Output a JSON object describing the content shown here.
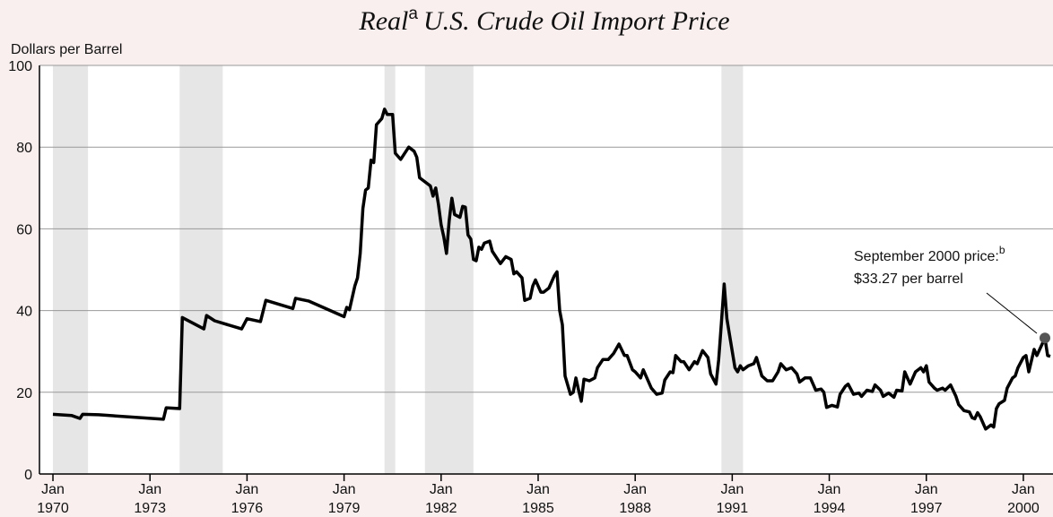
{
  "chart_data": {
    "type": "line",
    "title": [
      "Real",
      "a",
      "U.S. Crude Oil Import Price"
    ],
    "y_label": "Dollars per Barrel",
    "color": "#000000",
    "shade_color": "#e6e6e6",
    "grid": true,
    "xlim": [
      "1969-08",
      "2000-12"
    ],
    "ylim": [
      0,
      100
    ],
    "yticks": [
      0,
      20,
      40,
      60,
      80,
      100
    ],
    "xticks": [
      {
        "value": "1970-01",
        "label": [
          "Jan",
          "1970"
        ]
      },
      {
        "value": "1973-01",
        "label": [
          "Jan",
          "1973"
        ]
      },
      {
        "value": "1976-01",
        "label": [
          "Jan",
          "1976"
        ]
      },
      {
        "value": "1979-01",
        "label": [
          "Jan",
          "1979"
        ]
      },
      {
        "value": "1982-01",
        "label": [
          "Jan",
          "1982"
        ]
      },
      {
        "value": "1985-01",
        "label": [
          "Jan",
          "1985"
        ]
      },
      {
        "value": "1988-01",
        "label": [
          "Jan",
          "1988"
        ]
      },
      {
        "value": "1991-01",
        "label": [
          "Jan",
          "1991"
        ]
      },
      {
        "value": "1994-01",
        "label": [
          "Jan",
          "1994"
        ]
      },
      {
        "value": "1997-01",
        "label": [
          "Jan",
          "1997"
        ]
      },
      {
        "value": "2000-01",
        "label": [
          "Jan",
          "2000"
        ]
      }
    ],
    "shaded_periods": [
      [
        "1970-01",
        "1971-02"
      ],
      [
        "1973-12",
        "1975-04"
      ],
      [
        "1980-04",
        "1980-08"
      ],
      [
        "1981-07",
        "1983-01"
      ],
      [
        "1990-09",
        "1991-05"
      ]
    ],
    "x": [
      "1970-01",
      "1970-08",
      "1970-11",
      "1970-12",
      "1971-06",
      "1973-06",
      "1973-07",
      "1973-12",
      "1974-01",
      "1974-09",
      "1974-10",
      "1975-01",
      "1975-11",
      "1976-01",
      "1976-06",
      "1976-08",
      "1977-06",
      "1977-07",
      "1977-12",
      "1979-01",
      "1979-02",
      "1979-03",
      "1979-05",
      "1979-06",
      "1979-07",
      "1979-08",
      "1979-09",
      "1979-10",
      "1979-11",
      "1979-12",
      "1980-01",
      "1980-03",
      "1980-04",
      "1980-05",
      "1980-07",
      "1980-08",
      "1980-10",
      "1981-01",
      "1981-03",
      "1981-04",
      "1981-05",
      "1981-09",
      "1981-10",
      "1981-11",
      "1981-12",
      "1982-01",
      "1982-02",
      "1982-03",
      "1982-04",
      "1982-05",
      "1982-06",
      "1982-08",
      "1982-09",
      "1982-10",
      "1982-11",
      "1982-12",
      "1983-01",
      "1983-02",
      "1983-03",
      "1983-04",
      "1983-05",
      "1983-07",
      "1983-08",
      "1983-11",
      "1984-01",
      "1984-03",
      "1984-04",
      "1984-05",
      "1984-07",
      "1984-08",
      "1984-10",
      "1984-11",
      "1984-12",
      "1985-02",
      "1985-03",
      "1985-05",
      "1985-07",
      "1985-08",
      "1985-09",
      "1985-10",
      "1985-11",
      "1986-01",
      "1986-02",
      "1986-03",
      "1986-04",
      "1986-05",
      "1986-06",
      "1986-08",
      "1986-10",
      "1986-11",
      "1987-01",
      "1987-03",
      "1987-05",
      "1987-07",
      "1987-09",
      "1987-10",
      "1987-12",
      "1988-01",
      "1988-03",
      "1988-04",
      "1988-05",
      "1988-07",
      "1988-09",
      "1988-11",
      "1988-12",
      "1989-02",
      "1989-03",
      "1989-04",
      "1989-06",
      "1989-07",
      "1989-09",
      "1989-11",
      "1989-12",
      "1990-02",
      "1990-04",
      "1990-05",
      "1990-07",
      "1990-08",
      "1990-09",
      "1990-10",
      "1990-11",
      "1990-12",
      "1991-02",
      "1991-03",
      "1991-04",
      "1991-05",
      "1991-07",
      "1991-09",
      "1991-10",
      "1991-12",
      "1992-02",
      "1992-04",
      "1992-06",
      "1992-07",
      "1992-09",
      "1992-11",
      "1993-01",
      "1993-02",
      "1993-04",
      "1993-06",
      "1993-08",
      "1993-10",
      "1993-11",
      "1993-12",
      "1994-02",
      "1994-04",
      "1994-05",
      "1994-07",
      "1994-08",
      "1994-10",
      "1994-12",
      "1995-01",
      "1995-03",
      "1995-05",
      "1995-06",
      "1995-08",
      "1995-09",
      "1995-11",
      "1996-01",
      "1996-02",
      "1996-04",
      "1996-05",
      "1996-07",
      "1996-08",
      "1996-09",
      "1996-11",
      "1996-12",
      "1997-01",
      "1997-02",
      "1997-04",
      "1997-05",
      "1997-07",
      "1997-08",
      "1997-10",
      "1997-12",
      "1998-01",
      "1998-03",
      "1998-05",
      "1998-06",
      "1998-07",
      "1998-08",
      "1998-09",
      "1998-11",
      "1999-01",
      "1999-02",
      "1999-03",
      "1999-04",
      "1999-06",
      "1999-07",
      "1999-09",
      "1999-10",
      "1999-11",
      "2000-01",
      "2000-02",
      "2000-03",
      "2000-05",
      "2000-06",
      "2000-09",
      "2000-10",
      "2000-11"
    ],
    "values": [
      14.6,
      14.3,
      13.6,
      14.6,
      14.5,
      13.4,
      16.2,
      16.0,
      38.3,
      35.5,
      38.8,
      37.5,
      35.5,
      38.0,
      37.3,
      42.5,
      40.5,
      43.0,
      42.3,
      38.5,
      40.8,
      40.2,
      46,
      48,
      54,
      65,
      69.5,
      70,
      76.8,
      76.2,
      85.5,
      87,
      89.3,
      88,
      88,
      78.5,
      77,
      80,
      79,
      77.5,
      72.5,
      70.5,
      68,
      70,
      66,
      61,
      58,
      54,
      62,
      67.5,
      63.5,
      62.8,
      65.5,
      65.3,
      58.5,
      57.5,
      52.5,
      52.2,
      55.5,
      55,
      56.5,
      57,
      54.5,
      51.5,
      53.2,
      52.5,
      49,
      49.5,
      48,
      42.5,
      43,
      46,
      47.5,
      44.5,
      44.5,
      45.5,
      48.5,
      49.5,
      40,
      36.5,
      24,
      19.5,
      20,
      23.5,
      20.5,
      17.8,
      23.2,
      22.8,
      23.5,
      26,
      28,
      28,
      29.5,
      31.8,
      29,
      29,
      25.5,
      25,
      23.5,
      25.5,
      24,
      21,
      19.5,
      19.8,
      23,
      25,
      24.8,
      29,
      27.5,
      27.5,
      25.5,
      27.5,
      27,
      30.2,
      28.5,
      24.5,
      22,
      28,
      37,
      46.5,
      38,
      34,
      26,
      25,
      26.5,
      25.5,
      26.5,
      27,
      28.5,
      24,
      22.8,
      22.8,
      25,
      27,
      25.5,
      26,
      24.5,
      22.5,
      23.5,
      23.5,
      20.5,
      20.8,
      20,
      16.3,
      16.8,
      16.4,
      19.5,
      21.5,
      22,
      19.5,
      19.8,
      19,
      20.5,
      20.2,
      21.8,
      20.5,
      19,
      19.8,
      18.8,
      20.5,
      20.3,
      25,
      22,
      23.5,
      25,
      26,
      25,
      26.5,
      22.5,
      21,
      20.5,
      21,
      20.5,
      21.8,
      19,
      17,
      15.5,
      15.2,
      13.8,
      13.5,
      15,
      14,
      11,
      12,
      11.5,
      16,
      17.2,
      18,
      21,
      23.5,
      24,
      26,
      28.5,
      29,
      25,
      30.5,
      29,
      33.27,
      29,
      28.8
    ],
    "annotation": {
      "text": [
        "September 2000 price:",
        "b",
        "$33.27 per barrel"
      ],
      "x": "2000-09",
      "value": 33.27
    }
  }
}
